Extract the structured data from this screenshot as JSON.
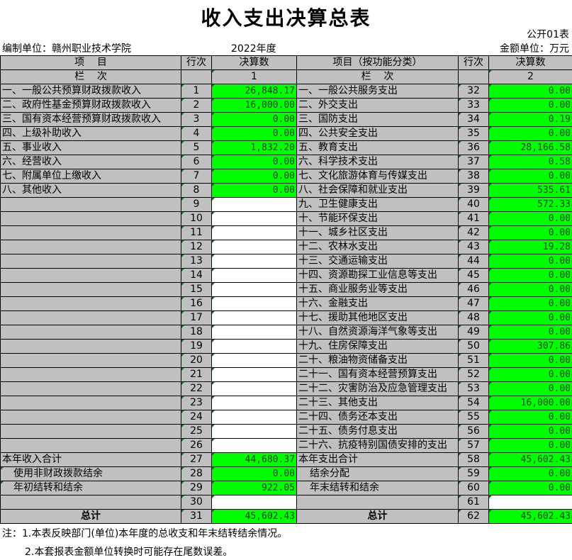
{
  "title": "收入支出决算总表",
  "form_no": "公开01表",
  "unit": "编制单位：赣州职业技术学院",
  "year": "2022年度",
  "money_unit": "金额单位：万元",
  "headers": {
    "left_item": "项    目",
    "line": "行次",
    "amount": "决算数",
    "right_item": "项目（按功能分类）",
    "col_label": "栏    次",
    "col1": "1",
    "col2": "2"
  },
  "left_rows": [
    {
      "label": "一、一般公共预算财政拨款收入",
      "no": "1",
      "value": "26,848.17"
    },
    {
      "label": "二、政府性基金预算财政拨款收入",
      "no": "2",
      "value": "16,000.00"
    },
    {
      "label": "三、国有资本经营预算财政拨款收入",
      "no": "3",
      "value": "0.00"
    },
    {
      "label": "四、上级补助收入",
      "no": "4",
      "value": "0.00"
    },
    {
      "label": "五、事业收入",
      "no": "5",
      "value": "1,832.20"
    },
    {
      "label": "六、经营收入",
      "no": "6",
      "value": "0.00"
    },
    {
      "label": "七、附属单位上缴收入",
      "no": "7",
      "value": "0.00"
    },
    {
      "label": "八、其他收入",
      "no": "8",
      "value": "0.00"
    },
    {
      "label": "",
      "no": "9",
      "value": null
    },
    {
      "label": "",
      "no": "10",
      "value": null
    },
    {
      "label": "",
      "no": "11",
      "value": null
    },
    {
      "label": "",
      "no": "12",
      "value": null
    },
    {
      "label": "",
      "no": "13",
      "value": null
    },
    {
      "label": "",
      "no": "14",
      "value": null
    },
    {
      "label": "",
      "no": "15",
      "value": null
    },
    {
      "label": "",
      "no": "16",
      "value": null
    },
    {
      "label": "",
      "no": "17",
      "value": null
    },
    {
      "label": "",
      "no": "18",
      "value": null
    },
    {
      "label": "",
      "no": "19",
      "value": null
    },
    {
      "label": "",
      "no": "20",
      "value": null
    },
    {
      "label": "",
      "no": "21",
      "value": null
    },
    {
      "label": "",
      "no": "22",
      "value": null
    },
    {
      "label": "",
      "no": "23",
      "value": null
    },
    {
      "label": "",
      "no": "24",
      "value": null
    },
    {
      "label": "",
      "no": "25",
      "value": null
    },
    {
      "label": "",
      "no": "26",
      "value": null
    },
    {
      "label": "本年收入合计",
      "no": "27",
      "value": "44,680.37"
    },
    {
      "label": "使用非财政拨款结余",
      "no": "28",
      "value": "0.00",
      "indent": true
    },
    {
      "label": "年初结转和结余",
      "no": "29",
      "value": "922.05",
      "indent": true
    },
    {
      "label": "",
      "no": "30",
      "value": null
    },
    {
      "label": "总计",
      "no": "31",
      "value": "45,602.43",
      "bold": true
    }
  ],
  "right_rows": [
    {
      "label": "一、一般公共服务支出",
      "no": "32",
      "value": "0.00"
    },
    {
      "label": "二、外交支出",
      "no": "33",
      "value": "0.00"
    },
    {
      "label": "三、国防支出",
      "no": "34",
      "value": "0.19"
    },
    {
      "label": "四、公共安全支出",
      "no": "35",
      "value": "0.00"
    },
    {
      "label": "五、教育支出",
      "no": "36",
      "value": "28,166.58"
    },
    {
      "label": "六、科学技术支出",
      "no": "37",
      "value": "0.58"
    },
    {
      "label": "七、文化旅游体育与传媒支出",
      "no": "38",
      "value": "0.00"
    },
    {
      "label": "八、社会保障和就业支出",
      "no": "39",
      "value": "535.61"
    },
    {
      "label": "九、卫生健康支出",
      "no": "40",
      "value": "572.33"
    },
    {
      "label": "十、节能环保支出",
      "no": "41",
      "value": "0.00"
    },
    {
      "label": "十一、城乡社区支出",
      "no": "42",
      "value": "0.00"
    },
    {
      "label": "十二、农林水支出",
      "no": "43",
      "value": "19.28"
    },
    {
      "label": "十三、交通运输支出",
      "no": "44",
      "value": "0.00"
    },
    {
      "label": "十四、资源勘探工业信息等支出",
      "no": "45",
      "value": "0.00"
    },
    {
      "label": "十五、商业服务业等支出",
      "no": "46",
      "value": "0.00"
    },
    {
      "label": "十六、金融支出",
      "no": "47",
      "value": "0.00"
    },
    {
      "label": "十七、援助其他地区支出",
      "no": "48",
      "value": "0.00"
    },
    {
      "label": "十八、自然资源海洋气象等支出",
      "no": "49",
      "value": "0.00"
    },
    {
      "label": "十九、住房保障支出",
      "no": "50",
      "value": "307.86"
    },
    {
      "label": "二十、粮油物资储备支出",
      "no": "51",
      "value": "0.00"
    },
    {
      "label": "二十一、国有资本经营预算支出",
      "no": "52",
      "value": "0.00"
    },
    {
      "label": "二十二、灾害防治及应急管理支出",
      "no": "53",
      "value": "0.00"
    },
    {
      "label": "二十三、其他支出",
      "no": "54",
      "value": "16,000.00"
    },
    {
      "label": "二十四、债务还本支出",
      "no": "55",
      "value": "0.00"
    },
    {
      "label": "二十五、债务付息支出",
      "no": "56",
      "value": "0.00"
    },
    {
      "label": "二十六、抗疫特别国债安排的支出",
      "no": "57",
      "value": "0.00"
    },
    {
      "label": "本年支出合计",
      "no": "58",
      "value": "45,602.43"
    },
    {
      "label": "结余分配",
      "no": "59",
      "value": "0.00",
      "indent": true
    },
    {
      "label": "年末结转和结余",
      "no": "60",
      "value": "0.00",
      "indent": true
    },
    {
      "label": "",
      "no": "61",
      "value": null
    },
    {
      "label": "总计",
      "no": "62",
      "value": "45,602.43",
      "bold": true
    }
  ],
  "notes": [
    "注：1.本表反映部门(单位)本年度的总收支和年末结转结余情况。",
    "2.本套报表金额单位转换时可能存在尾数误差。"
  ],
  "colors": {
    "value_cell": "#00ff00",
    "label_cell": "#c0c0c0"
  }
}
